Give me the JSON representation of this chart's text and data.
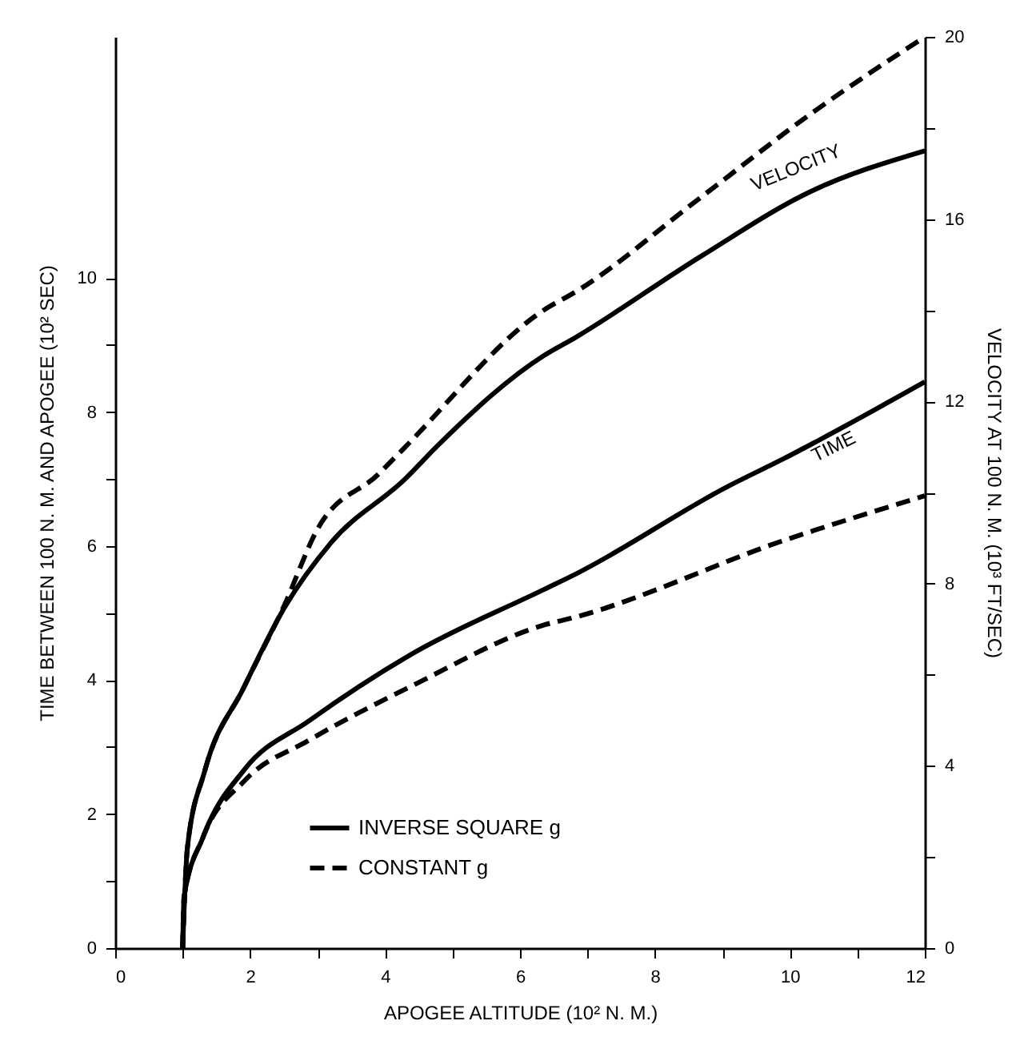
{
  "chart_data": {
    "type": "line",
    "xlabel": "APOGEE ALTITUDE (10² N. M.)",
    "ylabel": "TIME BETWEEN 100 N. M. AND APOGEE (10² SEC)",
    "y2label": "VELOCITY AT 100 N. M. (10³ FT/SEC)",
    "xlim": [
      0,
      12
    ],
    "xticks": [
      0,
      {
        "value": 1,
        "label": null
      },
      2,
      {
        "value": 3,
        "label": null
      },
      4,
      {
        "value": 5,
        "label": null
      },
      6,
      {
        "value": 7,
        "label": null
      },
      8,
      {
        "value": 9,
        "label": null
      },
      10,
      {
        "value": 11,
        "label": null
      },
      12
    ],
    "ylim": [
      0,
      13.6
    ],
    "yticks": [
      0,
      {
        "value": 1,
        "label": null
      },
      2,
      {
        "value": 3,
        "label": null
      },
      4,
      {
        "value": 5,
        "label": null
      },
      6,
      {
        "value": 7,
        "label": null
      },
      8,
      {
        "value": 9,
        "label": null
      },
      10
    ],
    "y2lim": [
      0,
      20
    ],
    "y2ticks": [
      0,
      {
        "value": 2,
        "label": null
      },
      4,
      {
        "value": 6,
        "label": null
      },
      8,
      {
        "value": 10,
        "label": null
      },
      12,
      {
        "value": 14,
        "label": null
      },
      16,
      {
        "value": 18,
        "label": null
      },
      20
    ],
    "series": [
      {
        "name": "INVERSE SQUARE g",
        "color": "#000000",
        "line_style": "solid",
        "axis": "y2",
        "x": [
          1,
          1.07,
          1.33,
          1.9,
          2.5,
          3.2,
          4.3,
          4.76,
          6.35,
          6.82,
          8.7,
          10.3,
          12
        ],
        "values": [
          0,
          2.2,
          3.9,
          5.7,
          7.45,
          8.9,
          10.3,
          11.0,
          13.0,
          13.4,
          15.2,
          16.6,
          17.5
        ]
      },
      {
        "name": "CONSTANT g",
        "color": "#000000",
        "line_style": "dashed",
        "axis": "y2",
        "x": [
          1,
          1.07,
          1.33,
          1.9,
          2.5,
          3.0,
          3.9,
          4.3,
          6.35,
          6.82,
          8.7,
          10.3,
          12
        ],
        "values": [
          0,
          2.2,
          3.9,
          5.7,
          7.5,
          9.2,
          10.4,
          11.0,
          14.0,
          14.4,
          16.5,
          18.3,
          20
        ]
      },
      {
        "color": "#000000",
        "line_style": "solid",
        "axis": "y",
        "x": [
          1,
          1.02,
          1.3,
          1.92,
          2.87,
          4.45,
          6.35,
          6.82,
          9.1,
          9.9,
          12
        ],
        "values": [
          0,
          0.76,
          1.65,
          2.67,
          3.39,
          4.42,
          5.35,
          5.58,
          6.9,
          7.3,
          8.45
        ]
      },
      {
        "color": "#000000",
        "line_style": "dashed",
        "axis": "y",
        "x": [
          1,
          1.02,
          1.3,
          1.92,
          2.87,
          4.45,
          6.35,
          6.82,
          9.9,
          12
        ],
        "values": [
          0,
          0.76,
          1.65,
          2.5,
          3.1,
          3.94,
          4.82,
          4.94,
          6.08,
          6.75
        ]
      }
    ],
    "annotations": [
      "VELOCITY",
      "TIME"
    ],
    "marker": "none",
    "grid": false,
    "legend": "bottom"
  }
}
